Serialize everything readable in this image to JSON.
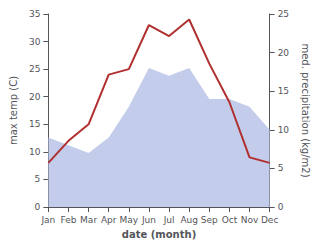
{
  "chart_data": {
    "type": "line",
    "xlabel": "date (month)",
    "ylabel": "max temp (C)",
    "y2label": "med. precipitation (kg/m2)",
    "categories": [
      "Jan",
      "Feb",
      "Mar",
      "Apr",
      "May",
      "Jun",
      "Jul",
      "Aug",
      "Sep",
      "Oct",
      "Nov",
      "Dec"
    ],
    "series": [
      {
        "type": "area",
        "color": "#b8c4e8",
        "axis": "y2",
        "values": [
          9,
          8,
          7,
          9,
          13,
          18,
          17,
          18,
          14,
          14,
          13,
          10
        ]
      },
      {
        "type": "line",
        "color": "#b03030",
        "values": [
          8,
          12,
          15,
          24,
          25,
          33,
          31,
          34,
          26,
          19,
          9,
          8
        ]
      }
    ],
    "ylim": [
      0,
      35
    ],
    "yticks": [
      0,
      5,
      10,
      15,
      20,
      25,
      30,
      35
    ],
    "y2lim": [
      0,
      25
    ],
    "y2ticks": [
      0,
      5,
      10,
      15,
      20,
      25
    ],
    "grid": false
  }
}
